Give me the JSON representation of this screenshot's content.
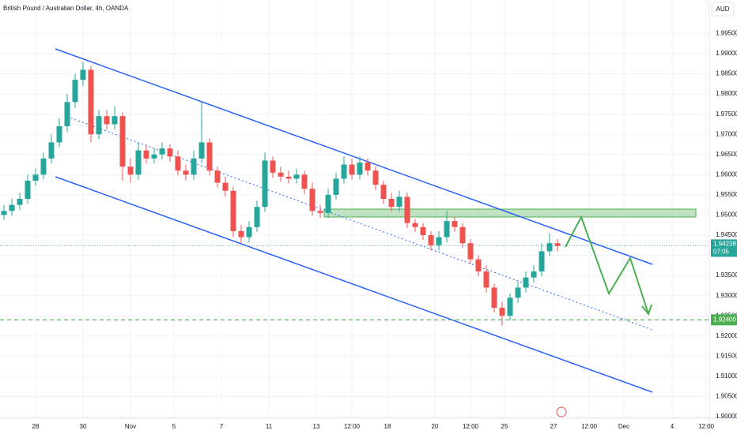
{
  "chart_data": {
    "type": "candlestick",
    "title": "British Pound / Australian Dollar, 4h, OANDA",
    "currency": "AUD",
    "up_color": "#26a69a",
    "down_color": "#ef5350",
    "open": [
      1.95,
      1.951,
      1.9525,
      1.954,
      1.9585,
      1.96,
      1.964,
      1.968,
      1.972,
      1.978,
      1.9835,
      1.986,
      1.97,
      1.9745,
      1.9725,
      1.9745,
      1.962,
      1.96,
      1.966,
      1.964,
      1.965,
      1.9665,
      1.9645,
      1.961,
      1.96,
      1.964,
      1.968,
      1.961,
      1.958,
      1.956,
      1.946,
      1.9445,
      1.947,
      1.952,
      1.9635,
      1.9605,
      1.9595,
      1.959,
      1.96,
      1.9565,
      1.951,
      1.9505,
      1.955,
      1.959,
      1.9625,
      1.96,
      1.963,
      1.961,
      1.9575,
      1.954,
      1.952,
      1.9545,
      1.948,
      1.947,
      1.945,
      1.9425,
      1.9445,
      1.9485,
      1.947,
      1.943,
      1.939,
      1.936,
      1.932,
      1.927,
      1.925,
      1.9295,
      1.932,
      1.9345,
      1.936,
      1.941,
      1.943
    ],
    "high": [
      1.9525,
      1.954,
      1.9555,
      1.96,
      1.9615,
      1.9655,
      1.97,
      1.974,
      1.98,
      1.985,
      1.988,
      1.987,
      1.976,
      1.976,
      1.977,
      1.9755,
      1.964,
      1.968,
      1.9675,
      1.9665,
      1.968,
      1.9675,
      1.966,
      1.9625,
      1.966,
      1.978,
      1.969,
      1.962,
      1.9595,
      1.957,
      1.9475,
      1.9485,
      1.9535,
      1.9655,
      1.9645,
      1.962,
      1.961,
      1.9615,
      1.961,
      1.958,
      1.9525,
      1.9565,
      1.9605,
      1.9645,
      1.964,
      1.9645,
      1.964,
      1.962,
      1.9585,
      1.9555,
      1.956,
      1.9555,
      1.949,
      1.948,
      1.946,
      1.946,
      1.951,
      1.9495,
      1.948,
      1.944,
      1.94,
      1.9375,
      1.933,
      1.9285,
      1.9305,
      1.9335,
      1.936,
      1.9375,
      1.943,
      1.9455,
      1.944
    ],
    "low": [
      1.9488,
      1.9498,
      1.9512,
      1.9528,
      1.9572,
      1.9588,
      1.9628,
      1.9668,
      1.9705,
      1.9765,
      1.982,
      1.968,
      1.9688,
      1.9712,
      1.9712,
      1.9585,
      1.958,
      1.9588,
      1.9628,
      1.9628,
      1.9638,
      1.9632,
      1.9598,
      1.9585,
      1.9588,
      1.9628,
      1.9598,
      1.9568,
      1.9545,
      1.9445,
      1.943,
      1.9432,
      1.9458,
      1.9508,
      1.9592,
      1.9582,
      1.9578,
      1.9578,
      1.9552,
      1.9498,
      1.9492,
      1.9492,
      1.9538,
      1.9578,
      1.9588,
      1.9588,
      1.9598,
      1.9562,
      1.9528,
      1.9508,
      1.9508,
      1.9468,
      1.9458,
      1.9438,
      1.9412,
      1.9412,
      1.9432,
      1.9458,
      1.9418,
      1.9378,
      1.9348,
      1.9308,
      1.9258,
      1.9225,
      1.9238,
      1.9282,
      1.9308,
      1.9332,
      1.9348,
      1.9398,
      1.941
    ],
    "close": [
      1.951,
      1.9525,
      1.954,
      1.9585,
      1.96,
      1.964,
      1.968,
      1.972,
      1.978,
      1.9835,
      1.986,
      1.97,
      1.9745,
      1.9725,
      1.9745,
      1.962,
      1.96,
      1.966,
      1.964,
      1.965,
      1.9665,
      1.9645,
      1.961,
      1.96,
      1.964,
      1.968,
      1.961,
      1.958,
      1.956,
      1.946,
      1.9445,
      1.947,
      1.952,
      1.9635,
      1.9605,
      1.9595,
      1.959,
      1.96,
      1.9565,
      1.951,
      1.9505,
      1.955,
      1.959,
      1.9625,
      1.96,
      1.963,
      1.961,
      1.9575,
      1.954,
      1.952,
      1.9545,
      1.948,
      1.947,
      1.945,
      1.9425,
      1.9445,
      1.9485,
      1.947,
      1.943,
      1.939,
      1.936,
      1.932,
      1.927,
      1.925,
      1.9295,
      1.932,
      1.9345,
      1.936,
      1.941,
      1.943,
      1.9423
    ],
    "xlim": [
      -0.5,
      89.2
    ],
    "xticks": [
      {
        "value": 4,
        "label": "28"
      },
      {
        "value": 10,
        "label": "30"
      },
      {
        "value": 16,
        "label": "Nov"
      },
      {
        "value": 21.5,
        "label": "5"
      },
      {
        "value": 27.5,
        "label": "7"
      },
      {
        "value": 33.5,
        "label": "11"
      },
      {
        "value": 39.5,
        "label": "13"
      },
      {
        "value": 44,
        "label": "12:00"
      },
      {
        "value": 48.5,
        "label": "18"
      },
      {
        "value": 54.5,
        "label": "20"
      },
      {
        "value": 59,
        "label": "12:00"
      },
      {
        "value": 63.3,
        "label": "25"
      },
      {
        "value": 69.5,
        "label": "27"
      },
      {
        "value": 74,
        "label": "12:00"
      },
      {
        "value": 78.4,
        "label": "Dec"
      },
      {
        "value": 84.5,
        "label": "4"
      },
      {
        "value": 88.8,
        "label": "12:00"
      }
    ],
    "ylim": [
      1.89961,
      2.0033
    ],
    "yticks": [
      {
        "value": 1.9,
        "label": "1.90000"
      },
      {
        "value": 1.905,
        "label": "1.90500"
      },
      {
        "value": 1.91,
        "label": "1.91000"
      },
      {
        "value": 1.915,
        "label": "1.91500"
      },
      {
        "value": 1.92,
        "label": "1.92000"
      },
      {
        "value": 1.925,
        "label": "1.92500"
      },
      {
        "value": 1.93,
        "label": "1.93000"
      },
      {
        "value": 1.935,
        "label": "1.93500"
      },
      {
        "value": 1.94,
        "label": "1.94000"
      },
      {
        "value": 1.945,
        "label": "1.94500"
      },
      {
        "value": 1.95,
        "label": "1.95000"
      },
      {
        "value": 1.955,
        "label": "1.95500"
      },
      {
        "value": 1.96,
        "label": "1.96000"
      },
      {
        "value": 1.965,
        "label": "1.96500"
      },
      {
        "value": 1.97,
        "label": "1.97000"
      },
      {
        "value": 1.975,
        "label": "1.97500"
      },
      {
        "value": 1.98,
        "label": "1.98000"
      },
      {
        "value": 1.985,
        "label": "1.98500"
      },
      {
        "value": 1.99,
        "label": "1.99000"
      },
      {
        "value": 1.995,
        "label": "1.99500"
      }
    ],
    "grid": true,
    "target_line": {
      "value": 1.924,
      "label": "1.92400",
      "color": "#4caf50"
    },
    "last_price": {
      "value": 1.94238,
      "label": "1.94238",
      "countdown": "07:05",
      "color": "#26a69a"
    }
  }
}
